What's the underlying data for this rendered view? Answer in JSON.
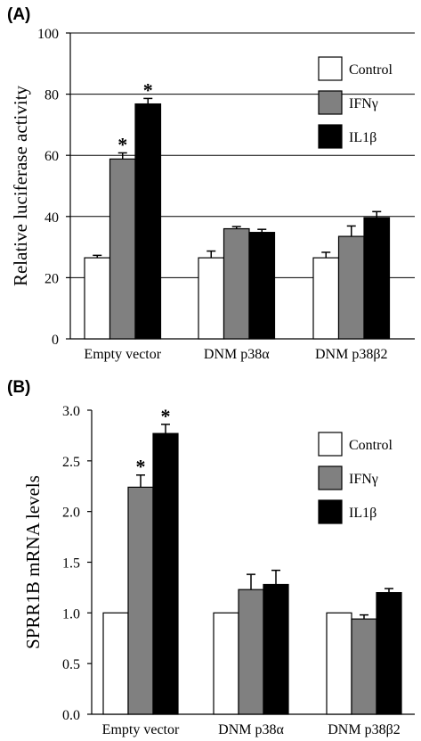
{
  "chart_data": [
    {
      "type": "bar",
      "panel_label": "(A)",
      "ylabel": "Relative luciferase activity",
      "ylim": [
        0,
        100
      ],
      "yticks": [
        "0",
        "20",
        "40",
        "60",
        "80",
        "100"
      ],
      "grid": true,
      "legend_position": "top-right",
      "categories": [
        "Empty vector",
        "DNM p38α",
        "DNM p38β2"
      ],
      "series": [
        {
          "name": "Control",
          "color": "#ffffff",
          "values": [
            26.5,
            26.5,
            26.5
          ],
          "errors": [
            0.8,
            2.2,
            1.8
          ],
          "significant": [
            false,
            false,
            false
          ]
        },
        {
          "name": "IFNγ",
          "color": "#808080",
          "values": [
            58.8,
            36,
            33.5
          ],
          "errors": [
            2,
            0.7,
            3.4
          ],
          "significant": [
            true,
            false,
            false
          ]
        },
        {
          "name": "IL1β",
          "color": "#000000",
          "values": [
            76.8,
            34.8,
            39.6
          ],
          "errors": [
            1.8,
            1,
            2
          ],
          "significant": [
            true,
            false,
            false
          ]
        }
      ],
      "significance_marker": "*"
    },
    {
      "type": "bar",
      "panel_label": "(B)",
      "ylabel": "SPRR1B mRNA levels",
      "ylim": [
        0,
        3
      ],
      "yticks": [
        "0.0",
        "0.5",
        "1.0",
        "1.5",
        "2.0",
        "2.5",
        "3.0"
      ],
      "grid": false,
      "legend_position": "top-right",
      "categories": [
        "Empty vector",
        "DNM p38α",
        "DNM p38β2"
      ],
      "series": [
        {
          "name": "Control",
          "color": "#ffffff",
          "values": [
            1.0,
            1.0,
            1.0
          ],
          "errors": [
            0,
            0,
            0
          ],
          "significant": [
            false,
            false,
            false
          ]
        },
        {
          "name": "IFNγ",
          "color": "#808080",
          "values": [
            2.24,
            1.23,
            0.94
          ],
          "errors": [
            0.12,
            0.15,
            0.04
          ],
          "significant": [
            true,
            false,
            false
          ]
        },
        {
          "name": "IL1β",
          "color": "#000000",
          "values": [
            2.77,
            1.28,
            1.2
          ],
          "errors": [
            0.09,
            0.14,
            0.04
          ],
          "significant": [
            true,
            false,
            false
          ]
        }
      ],
      "significance_marker": "*"
    }
  ]
}
